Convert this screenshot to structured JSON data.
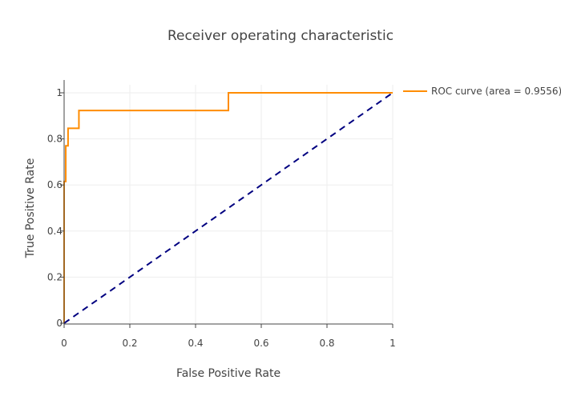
{
  "colors": {
    "background": "#ffffff",
    "grid": "#eeeeee",
    "axis": "#444444",
    "text": "#444444",
    "roc_series": "#ff8c00",
    "chance_line": "#000080"
  },
  "chart_data": {
    "type": "line",
    "title": "Receiver operating characteristic",
    "xlabel": "False Positive Rate",
    "ylabel": "True Positive Rate",
    "xlim": [
      0,
      1
    ],
    "ylim": [
      0,
      1
    ],
    "xticks": [
      "0",
      "0.2",
      "0.4",
      "0.6",
      "0.8",
      "1"
    ],
    "yticks": [
      "0",
      "0.2",
      "0.4",
      "0.6",
      "0.8",
      "1"
    ],
    "grid": true,
    "legend": "top-right (outside plot)",
    "series": [
      {
        "name": "ROC curve (area = 0.9556)",
        "color": "#ff8c00",
        "style": "solid",
        "x": [
          0,
          0,
          0.005,
          0.005,
          0.012,
          0.012,
          0.045,
          0.045,
          0.5,
          0.5,
          1
        ],
        "y": [
          0,
          0.615,
          0.615,
          0.77,
          0.77,
          0.846,
          0.846,
          0.923,
          0.923,
          1,
          1
        ]
      },
      {
        "name": "",
        "color": "#000080",
        "style": "dash",
        "x": [
          0,
          1
        ],
        "y": [
          0,
          1
        ]
      }
    ]
  }
}
